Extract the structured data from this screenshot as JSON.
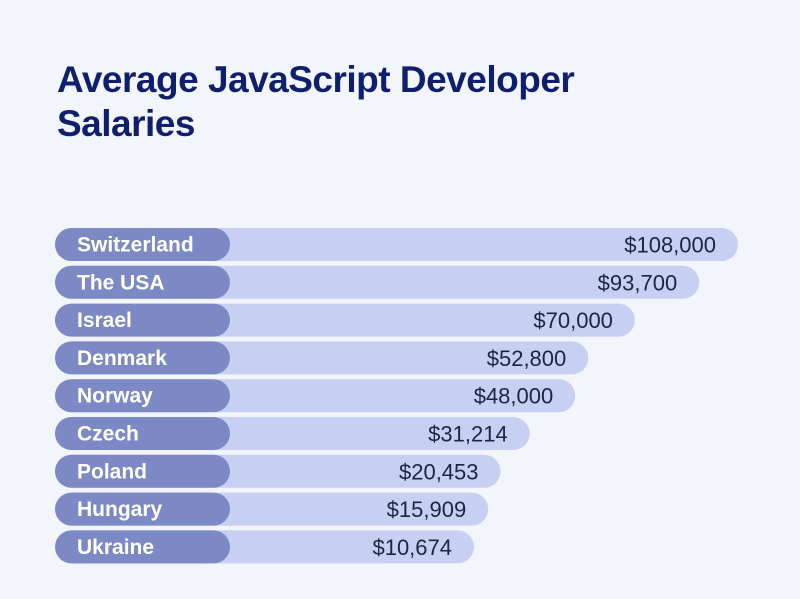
{
  "chart_data": {
    "type": "bar",
    "orientation": "horizontal",
    "title": "Average JavaScript Developer Salaries",
    "categories": [
      "Switzerland",
      "The USA",
      "Israel",
      "Denmark",
      "Norway",
      "Czech",
      "Poland",
      "Hungary",
      "Ukraine"
    ],
    "values": [
      108000,
      93700,
      70000,
      52800,
      48000,
      31214,
      20453,
      15909,
      10674
    ],
    "value_labels": [
      "$108,000",
      "$93,700",
      "$70,000",
      "$52,800",
      "$48,000",
      "$31,214",
      "$20,453",
      "$15,909",
      "$10,674"
    ],
    "xlabel": "",
    "ylabel": "",
    "grid": false,
    "legend": "none"
  },
  "colors": {
    "background": "#f3f5fc",
    "title": "#0f1f6e",
    "label_pill": "#7c89c4",
    "bar": "#c7cff3",
    "value_text": "#1c2440"
  }
}
